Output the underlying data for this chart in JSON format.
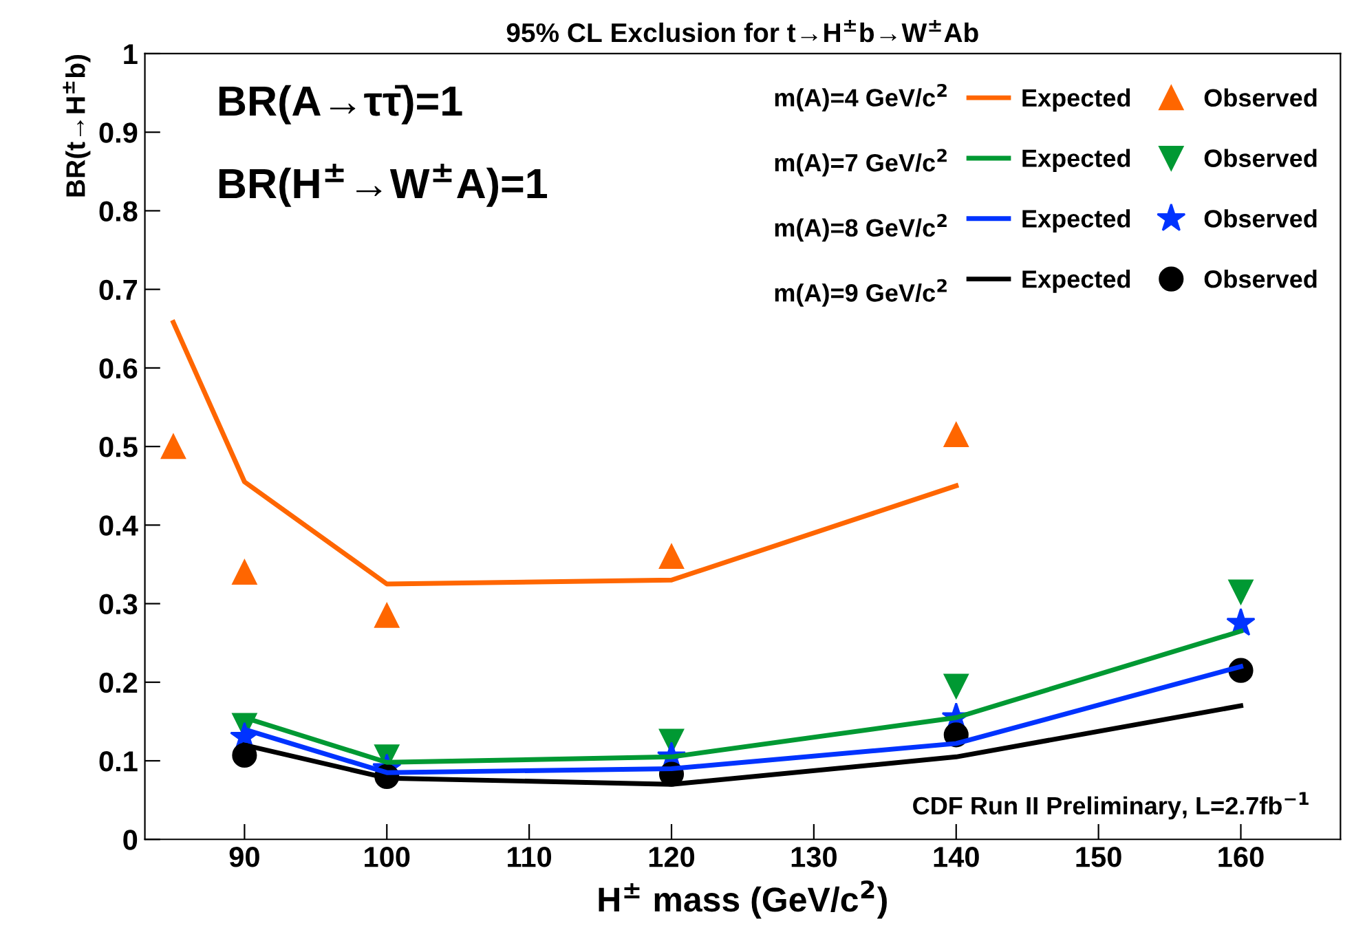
{
  "chart_data": {
    "type": "line",
    "title": "95% CL Exclusion for t→H$^{±}$b→W$^{±}$Ab",
    "xlabel": "H$^{±}$ mass (GeV/c$^{2}$)",
    "ylabel": "BR(t→H$^{±}$b)",
    "annotations": [
      "BR(A→ττ̄)=1",
      "BR(H$^{±}$→W$^{±}$A)=1",
      "CDF Run II Preliminary, L=2.7fb$^{−1}$",
      "m(A)=4 GeV/c$^{2}$",
      "m(A)=7 GeV/c$^{2}$",
      "m(A)=8 GeV/c$^{2}$",
      "m(A)=9 GeV/c$^{2}$"
    ],
    "series": [
      {
        "name": "Expected",
        "type": "line",
        "color": "#ff6600",
        "marker": "none",
        "x": [
          85,
          90,
          100,
          120,
          140
        ],
        "values": [
          0.658,
          0.455,
          0.325,
          0.33,
          0.45
        ]
      },
      {
        "name": "Observed",
        "type": "scatter",
        "color": "#ff6600",
        "marker": "triangle",
        "x": [
          85,
          90,
          100,
          120,
          140
        ],
        "values": [
          0.5,
          0.34,
          0.285,
          0.36,
          0.515
        ]
      },
      {
        "name": "Expected",
        "type": "line",
        "color": "#009933",
        "marker": "none",
        "x": [
          90,
          100,
          120,
          140,
          160
        ],
        "values": [
          0.155,
          0.098,
          0.105,
          0.155,
          0.265
        ]
      },
      {
        "name": "Observed",
        "type": "scatter",
        "color": "#009933",
        "marker": "triangle_down",
        "x": [
          90,
          100,
          120,
          140,
          160
        ],
        "values": [
          0.145,
          0.105,
          0.125,
          0.195,
          0.315
        ]
      },
      {
        "name": "Expected",
        "type": "line",
        "color": "#0033ff",
        "marker": "none",
        "x": [
          90,
          100,
          120,
          140,
          160
        ],
        "values": [
          0.14,
          0.085,
          0.09,
          0.122,
          0.22
        ]
      },
      {
        "name": "Observed",
        "type": "scatter",
        "color": "#0033ff",
        "marker": "star",
        "x": [
          90,
          100,
          120,
          140,
          160
        ],
        "values": [
          0.13,
          0.09,
          0.105,
          0.155,
          0.275
        ]
      },
      {
        "name": "Expected",
        "type": "line",
        "color": "#000000",
        "marker": "none",
        "x": [
          90,
          100,
          120,
          140,
          160
        ],
        "values": [
          0.12,
          0.078,
          0.07,
          0.105,
          0.17
        ]
      },
      {
        "name": "Observed",
        "type": "scatter",
        "color": "#000000",
        "marker": "circle",
        "x": [
          90,
          100,
          120,
          140,
          160
        ],
        "values": [
          0.107,
          0.08,
          0.083,
          0.133,
          0.215
        ]
      }
    ],
    "xlim": [
      83,
      167
    ],
    "xticks": [
      90,
      100,
      110,
      120,
      130,
      140,
      150,
      160
    ],
    "ylim": [
      0,
      1
    ],
    "yticks": [
      0,
      0.1,
      0.2,
      0.3,
      0.4,
      0.5,
      0.6,
      0.7,
      0.8,
      0.9,
      1
    ],
    "grid": false,
    "legend": "top right",
    "line_style": "solid"
  }
}
